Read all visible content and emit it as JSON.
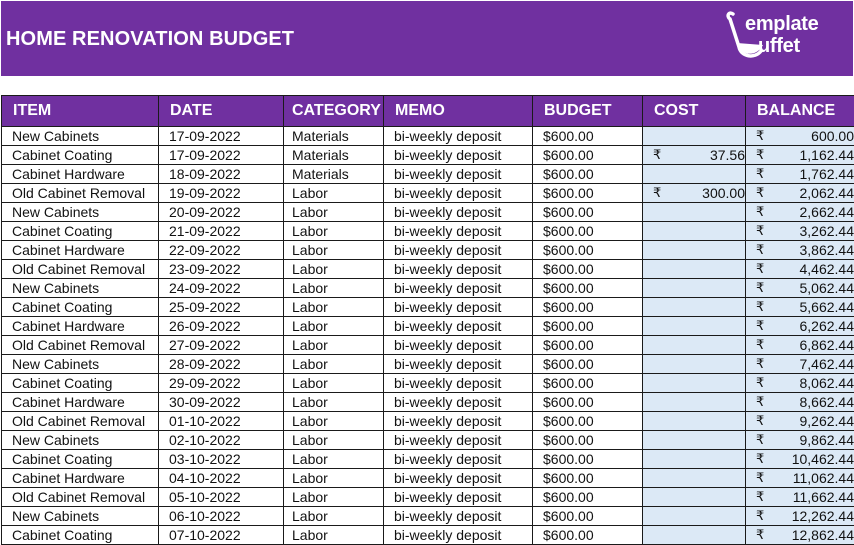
{
  "header": {
    "title": "HOME RENOVATION BUDGET",
    "logo": {
      "line1": "emplate",
      "line2": "uffet",
      "icon": "ladle-icon"
    },
    "brand_color": "#7030a0",
    "money_cell_color": "#dce9f6"
  },
  "table": {
    "columns": [
      "ITEM",
      "DATE",
      "CATEGORY",
      "MEMO",
      "BUDGET",
      "COST",
      "BALANCE"
    ],
    "currency_symbol": "₹",
    "rows": [
      {
        "item": "New Cabinets",
        "date": "17-09-2022",
        "category": "Materials",
        "memo": "bi-weekly deposit",
        "budget": "$600.00",
        "cost": "",
        "balance": "600.00"
      },
      {
        "item": "Cabinet Coating",
        "date": "17-09-2022",
        "category": "Materials",
        "memo": "bi-weekly deposit",
        "budget": "$600.00",
        "cost": "37.56",
        "balance": "1,162.44"
      },
      {
        "item": "Cabinet Hardware",
        "date": "18-09-2022",
        "category": "Materials",
        "memo": "bi-weekly deposit",
        "budget": "$600.00",
        "cost": "",
        "balance": "1,762.44"
      },
      {
        "item": "Old Cabinet Removal",
        "date": "19-09-2022",
        "category": "Labor",
        "memo": "bi-weekly deposit",
        "budget": "$600.00",
        "cost": "300.00",
        "balance": "2,062.44"
      },
      {
        "item": "New Cabinets",
        "date": "20-09-2022",
        "category": "Labor",
        "memo": "bi-weekly deposit",
        "budget": "$600.00",
        "cost": "",
        "balance": "2,662.44"
      },
      {
        "item": "Cabinet Coating",
        "date": "21-09-2022",
        "category": "Labor",
        "memo": "bi-weekly deposit",
        "budget": "$600.00",
        "cost": "",
        "balance": "3,262.44"
      },
      {
        "item": "Cabinet Hardware",
        "date": "22-09-2022",
        "category": "Labor",
        "memo": "bi-weekly deposit",
        "budget": "$600.00",
        "cost": "",
        "balance": "3,862.44"
      },
      {
        "item": "Old Cabinet Removal",
        "date": "23-09-2022",
        "category": "Labor",
        "memo": "bi-weekly deposit",
        "budget": "$600.00",
        "cost": "",
        "balance": "4,462.44"
      },
      {
        "item": "New Cabinets",
        "date": "24-09-2022",
        "category": "Labor",
        "memo": "bi-weekly deposit",
        "budget": "$600.00",
        "cost": "",
        "balance": "5,062.44"
      },
      {
        "item": "Cabinet Coating",
        "date": "25-09-2022",
        "category": "Labor",
        "memo": "bi-weekly deposit",
        "budget": "$600.00",
        "cost": "",
        "balance": "5,662.44"
      },
      {
        "item": "Cabinet Hardware",
        "date": "26-09-2022",
        "category": "Labor",
        "memo": "bi-weekly deposit",
        "budget": "$600.00",
        "cost": "",
        "balance": "6,262.44"
      },
      {
        "item": "Old Cabinet Removal",
        "date": "27-09-2022",
        "category": "Labor",
        "memo": "bi-weekly deposit",
        "budget": "$600.00",
        "cost": "",
        "balance": "6,862.44"
      },
      {
        "item": "New Cabinets",
        "date": "28-09-2022",
        "category": "Labor",
        "memo": "bi-weekly deposit",
        "budget": "$600.00",
        "cost": "",
        "balance": "7,462.44"
      },
      {
        "item": "Cabinet Coating",
        "date": "29-09-2022",
        "category": "Labor",
        "memo": "bi-weekly deposit",
        "budget": "$600.00",
        "cost": "",
        "balance": "8,062.44"
      },
      {
        "item": "Cabinet Hardware",
        "date": "30-09-2022",
        "category": "Labor",
        "memo": "bi-weekly deposit",
        "budget": "$600.00",
        "cost": "",
        "balance": "8,662.44"
      },
      {
        "item": "Old Cabinet Removal",
        "date": "01-10-2022",
        "category": "Labor",
        "memo": "bi-weekly deposit",
        "budget": "$600.00",
        "cost": "",
        "balance": "9,262.44"
      },
      {
        "item": "New Cabinets",
        "date": "02-10-2022",
        "category": "Labor",
        "memo": "bi-weekly deposit",
        "budget": "$600.00",
        "cost": "",
        "balance": "9,862.44"
      },
      {
        "item": "Cabinet Coating",
        "date": "03-10-2022",
        "category": "Labor",
        "memo": "bi-weekly deposit",
        "budget": "$600.00",
        "cost": "",
        "balance": "10,462.44"
      },
      {
        "item": "Cabinet Hardware",
        "date": "04-10-2022",
        "category": "Labor",
        "memo": "bi-weekly deposit",
        "budget": "$600.00",
        "cost": "",
        "balance": "11,062.44"
      },
      {
        "item": "Old Cabinet Removal",
        "date": "05-10-2022",
        "category": "Labor",
        "memo": "bi-weekly deposit",
        "budget": "$600.00",
        "cost": "",
        "balance": "11,662.44"
      },
      {
        "item": "New Cabinets",
        "date": "06-10-2022",
        "category": "Labor",
        "memo": "bi-weekly deposit",
        "budget": "$600.00",
        "cost": "",
        "balance": "12,262.44"
      },
      {
        "item": "Cabinet Coating",
        "date": "07-10-2022",
        "category": "Labor",
        "memo": "bi-weekly deposit",
        "budget": "$600.00",
        "cost": "",
        "balance": "12,862.44"
      }
    ]
  }
}
